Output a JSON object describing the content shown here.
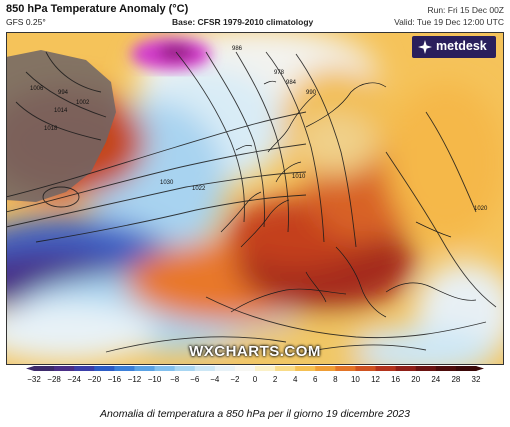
{
  "header": {
    "title": "850 hPa Temperature Anomaly (°C)",
    "model": "GFS 0.25°",
    "base": "Base: CFSR 1979-2010 climatology",
    "run": "Run: Fri 15 Dec 00Z",
    "valid": "Valid: Tue 19 Dec 12:00 UTC"
  },
  "logo": {
    "text": "metdesk"
  },
  "watermark": "WXCHARTS.COM",
  "isobar_labels": [
    "1006",
    "1010",
    "1014",
    "1018",
    "1020",
    "1022",
    "1030",
    "986",
    "984",
    "978",
    "990",
    "994",
    "1002"
  ],
  "colorbar": {
    "ticks": [
      "-32",
      "-28",
      "-24",
      "-20",
      "-16",
      "-12",
      "-10",
      "-8",
      "-6",
      "-4",
      "-2",
      "0",
      "2",
      "4",
      "6",
      "8",
      "10",
      "12",
      "16",
      "20",
      "24",
      "28",
      "32"
    ],
    "colors": [
      "#3d2a6a",
      "#4a2e86",
      "#3b3ea8",
      "#2c5cc5",
      "#3b7fd8",
      "#5aa2e4",
      "#82c0ee",
      "#a8d6f2",
      "#cde7f5",
      "#e8f2f7",
      "#f7f7f3",
      "#fbf1c8",
      "#f9dc88",
      "#f5c052",
      "#ef9d35",
      "#e37427",
      "#cf5220",
      "#b3331c",
      "#8f1f17",
      "#6a1311",
      "#4d0c0b",
      "#3a0808"
    ]
  },
  "caption": "Anomalia di temperatura a 850 hPa per il giorno 19 dicembre 2023"
}
